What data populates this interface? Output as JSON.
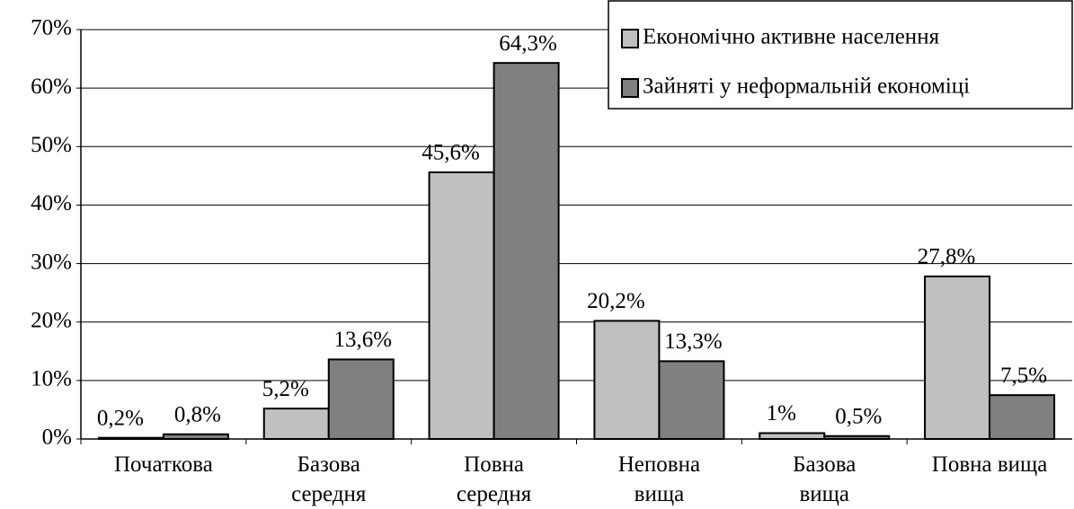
{
  "chart_data": {
    "type": "bar",
    "categories": [
      "Початкова",
      "Базова\nсередня",
      "Повна\nсередня",
      "Неповна\nвища",
      "Базова\nвища",
      "Повна вища"
    ],
    "series": [
      {
        "name": "Економічно активне населення",
        "color": "#c0c0c0",
        "values": [
          0.2,
          5.2,
          45.6,
          20.2,
          1,
          27.8
        ],
        "value_labels": [
          "0,2%",
          "5,2%",
          "45,6%",
          "20,2%",
          "1%",
          "27,8%"
        ]
      },
      {
        "name": "Зайняті у неформальній економіці",
        "color": "#808080",
        "values": [
          0.8,
          13.6,
          64.3,
          13.3,
          0.5,
          7.5
        ],
        "value_labels": [
          "0,8%",
          "13,6%",
          "64,3%",
          "13,3%",
          "0,5%",
          "7,5%"
        ]
      }
    ],
    "ylim": [
      0,
      70
    ],
    "yticks": [
      {
        "value": 0,
        "label": "0%"
      },
      {
        "value": 10,
        "label": "10%"
      },
      {
        "value": 20,
        "label": "20%"
      },
      {
        "value": 30,
        "label": "30%"
      },
      {
        "value": 40,
        "label": "40%"
      },
      {
        "value": 50,
        "label": "50%"
      },
      {
        "value": 60,
        "label": "60%"
      },
      {
        "value": 70,
        "label": "70%"
      }
    ],
    "grid": true,
    "legend": "top-right"
  }
}
